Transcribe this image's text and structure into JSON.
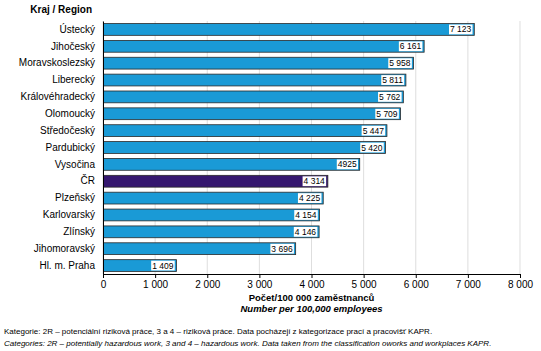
{
  "chart_data": {
    "type": "bar",
    "orientation": "horizontal",
    "y_label": "Kraj / Region",
    "x_label": [
      "Počet/100 000 zaměstnanců",
      "Number per 100,000 employees"
    ],
    "annotations": [
      "Kategorie: 2R – potenciální riziková práce, 3 a 4 – riziková práce. Data pocházejí z kategorizace prací a pracovišť KAPR.",
      "Categories: 2R – potentially hazardous work, 3 and 4 – hazardous work. Data taken from the classification oworks and workplaces KAPR."
    ],
    "categories": [
      "Ústecký",
      "Jihočeský",
      "Moravskoslezský",
      "Liberecký",
      "Královéhradecký",
      "Olomoucký",
      "Středočeský",
      "Pardubický",
      "Vysočina",
      "ČR",
      "Plzeňský",
      "Karlovarský",
      "Zlínský",
      "Jihomoravský",
      "Hl. m. Praha"
    ],
    "values": [
      7123,
      6161,
      5958,
      5811,
      5762,
      5709,
      5447,
      5420,
      4925,
      4314,
      4225,
      4154,
      4146,
      3696,
      1409
    ],
    "value_labels": [
      "7 123",
      "6 161",
      "5 958",
      "5 811",
      "5 762",
      "5 709",
      "5 447",
      "5 420",
      "4925",
      "4 314",
      "4 225",
      "4 154",
      "4 146",
      "3 696",
      "1 409"
    ],
    "data_labels": true,
    "colors": [
      "#1a9ad6",
      "#1a9ad6",
      "#1a9ad6",
      "#1a9ad6",
      "#1a9ad6",
      "#1a9ad6",
      "#1a9ad6",
      "#1a9ad6",
      "#1a9ad6",
      "#35176f",
      "#1a9ad6",
      "#1a9ad6",
      "#1a9ad6",
      "#1a9ad6",
      "#1a9ad6"
    ],
    "xlim": [
      0,
      8000
    ],
    "xticks": [
      0,
      {
        "value": 1000,
        "label": "1 000"
      },
      {
        "value": 2000,
        "label": "2 000"
      },
      {
        "value": 3000,
        "label": "3 000"
      },
      {
        "value": 4000,
        "label": "4 000"
      },
      {
        "value": 5000,
        "label": "5 000"
      },
      {
        "value": 6000,
        "label": "6 000"
      },
      {
        "value": 7000,
        "label": "7 000"
      },
      {
        "value": 8000,
        "label": "8 000"
      }
    ],
    "grid": true
  }
}
